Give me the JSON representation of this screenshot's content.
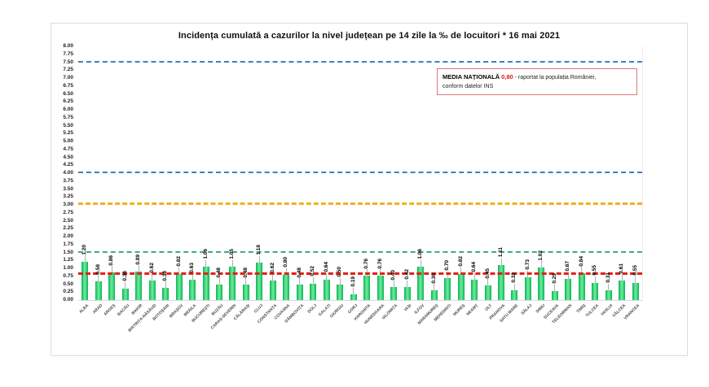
{
  "title": "Incidența cumulată a cazurilor la nivel județean pe 14 zile la ‰ de locuitori *  16 mai 2021",
  "legend": {
    "label": "MEDIA NAȚIONALĂ",
    "value": "0,80",
    "text_after": "- raportat la populația României,",
    "text_line2": "conform datelor INS"
  },
  "colors": {
    "bar": "#0cb257",
    "blue_line": "#3f7fc1",
    "gold_line": "#f2b11c",
    "green_line": "#3fae7a",
    "red_line": "#e02318"
  },
  "chart_data": {
    "type": "bar",
    "title": "Incidența cumulată a cazurilor la nivel județean pe 14 zile la ‰ de locuitori *  16 mai 2021",
    "xlabel": "",
    "ylabel": "",
    "ylim": [
      0,
      8
    ],
    "ytick_step": 0.25,
    "grid": false,
    "legend_position": "top-right",
    "categories": [
      "ALBA",
      "ARAD",
      "ARGEȘ",
      "BACĂU",
      "BIHOR",
      "BISTRIȚA-NĂSĂUD",
      "BOTOȘANI",
      "BRAȘOV",
      "BRĂILA",
      "BUCUREȘTI",
      "BUZĂU",
      "CARAȘ-SEVERIN",
      "CĂLĂRAȘI",
      "CLUJ",
      "CONSTANȚA",
      "COVASNA",
      "DÂMBOVIȚA",
      "DOLJ",
      "GALAȚI",
      "GIURGIU",
      "GORJ",
      "HARGHITA",
      "HUNEDOARA",
      "IALOMIȚA",
      "IAȘI",
      "ILFOV",
      "MARAMUREȘ",
      "MEHEDINȚI",
      "MUREȘ",
      "NEAMȚ",
      "OLT",
      "PRAHOVA",
      "SATU MARE",
      "SĂLAJ",
      "SIBIU",
      "SUCEAVA",
      "TELEORMAN",
      "TIMIȘ",
      "TULCEA",
      "VASLUI",
      "VÂLCEA",
      "VRANCEA"
    ],
    "values": [
      1.2,
      0.58,
      0.86,
      0.36,
      0.89,
      0.62,
      0.38,
      0.82,
      0.63,
      1.06,
      0.48,
      1.05,
      0.48,
      1.18,
      0.62,
      0.8,
      0.48,
      0.52,
      0.64,
      0.5,
      0.19,
      0.76,
      0.76,
      0.4,
      0.42,
      1.06,
      0.3,
      0.7,
      0.82,
      0.64,
      0.45,
      1.11,
      0.32,
      0.73,
      1.02,
      0.29,
      0.67,
      0.84,
      0.55,
      0.31,
      0.61,
      0.55
    ],
    "reference_lines": [
      {
        "value": 7.5,
        "color": "#3f7fc1",
        "style": "dashed",
        "thickness": 2
      },
      {
        "value": 4.0,
        "color": "#3f7fc1",
        "style": "dashed",
        "thickness": 2
      },
      {
        "value": 3.0,
        "color": "#f2b11c",
        "style": "dashed",
        "thickness": 3
      },
      {
        "value": 1.5,
        "color": "#3fae7a",
        "style": "dashed",
        "thickness": 2
      },
      {
        "value": 0.8,
        "color": "#e02318",
        "style": "dashed",
        "thickness": 3
      }
    ]
  }
}
